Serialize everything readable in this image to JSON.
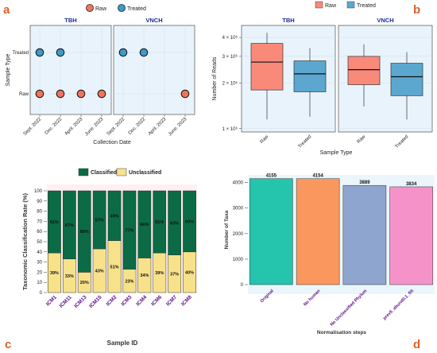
{
  "colors": {
    "raw": "#f2735c",
    "treated": "#3b9ac6",
    "raw_box": "#f98a7a",
    "treated_box": "#5ba7cf",
    "panel_bg": "#e8f3fb",
    "classified": "#0b6b45",
    "unclassified": "#f7e28a",
    "panel_letter": "#d9622b",
    "strip_text": "#1a2a9a",
    "sample_text": "#5c0a8a",
    "bar_colors": [
      "#24c4ad",
      "#f9975e",
      "#8ea5cf",
      "#f593c9"
    ]
  },
  "panel_labels": [
    "a",
    "b",
    "c",
    "d"
  ],
  "chart_data": [
    {
      "id": "a",
      "type": "scatter",
      "legend": [
        "Raw",
        "Treated"
      ],
      "legend_position": "top",
      "facets": [
        "TBH",
        "VNCH"
      ],
      "x_categories": [
        "Sept. 2022",
        "Dec. 2022",
        "April. 2023",
        "June. 2023"
      ],
      "y_categories": [
        "Raw",
        "Treated"
      ],
      "xlabel": "Collection Date",
      "ylabel": "Sample Type",
      "points": [
        {
          "facet": "TBH",
          "x": "Sept. 2022",
          "y": "Raw"
        },
        {
          "facet": "TBH",
          "x": "Dec. 2022",
          "y": "Raw"
        },
        {
          "facet": "TBH",
          "x": "April. 2023",
          "y": "Raw"
        },
        {
          "facet": "TBH",
          "x": "June. 2023",
          "y": "Raw"
        },
        {
          "facet": "TBH",
          "x": "Sept. 2022",
          "y": "Treated"
        },
        {
          "facet": "TBH",
          "x": "Dec. 2022",
          "y": "Treated"
        },
        {
          "facet": "VNCH",
          "x": "Sept. 2022",
          "y": "Treated"
        },
        {
          "facet": "VNCH",
          "x": "Dec. 2022",
          "y": "Treated"
        },
        {
          "facet": "VNCH",
          "x": "June. 2023",
          "y": "Raw"
        }
      ]
    },
    {
      "id": "b",
      "type": "boxplot",
      "legend": [
        "Raw",
        "Treated"
      ],
      "legend_position": "top",
      "facets": [
        "TBH",
        "VNCH"
      ],
      "categories": [
        "Raw",
        "Treated"
      ],
      "xlabel": "Sample Type",
      "ylabel": "Number of Reads",
      "y_scale": "log",
      "yticks": [
        1000000,
        2000000,
        3000000,
        4000000
      ],
      "ytick_labels": [
        "1 × 10⁶",
        "2 × 10⁶",
        "3 × 10⁶",
        "4 × 10⁶"
      ],
      "ylim": [
        950000,
        4800000
      ],
      "boxes": [
        {
          "facet": "TBH",
          "category": "Raw",
          "min": 1150000,
          "q1": 1800000,
          "median": 2750000,
          "q3": 3650000,
          "max": 4300000
        },
        {
          "facet": "TBH",
          "category": "Treated",
          "min": 1200000,
          "q1": 1750000,
          "median": 2300000,
          "q3": 2800000,
          "max": 3400000
        },
        {
          "facet": "VNCH",
          "category": "Raw",
          "min": 1400000,
          "q1": 1950000,
          "median": 2450000,
          "q3": 3000000,
          "max": 3600000
        },
        {
          "facet": "VNCH",
          "category": "Treated",
          "min": 1150000,
          "q1": 1650000,
          "median": 2200000,
          "q3": 2700000,
          "max": 3200000
        }
      ]
    },
    {
      "id": "c",
      "type": "bar",
      "stacked": true,
      "legend": [
        "Classified",
        "Unclassified"
      ],
      "legend_position": "top",
      "categories": [
        "ICM1",
        "ICM11",
        "ICM13",
        "ICM15",
        "ICM2",
        "ICM3",
        "ICM4",
        "ICM6",
        "ICM7",
        "ICM8"
      ],
      "series": [
        {
          "name": "Classified",
          "values": [
            61,
            67,
            80,
            57,
            49,
            77,
            66,
            61,
            63,
            60
          ]
        },
        {
          "name": "Unclassified",
          "values": [
            39,
            33,
            20,
            43,
            51,
            23,
            34,
            39,
            37,
            40
          ]
        }
      ],
      "classified_labels": [
        "61%",
        "67%",
        "80%",
        "57%",
        "49%",
        "77%",
        "66%",
        "61%",
        "63%",
        "60%"
      ],
      "unclassified_labels": [
        "39%",
        "33%",
        "20%",
        "43%",
        "51%",
        "23%",
        "34%",
        "39%",
        "37%",
        "40%"
      ],
      "xlabel": "Sample ID",
      "ylabel": "Taxonomic Classification Rate (%)",
      "ylim": [
        0,
        100
      ],
      "yticks": [
        "0",
        "10",
        "20",
        "30",
        "40",
        "50",
        "60",
        "70",
        "80",
        "90",
        "100"
      ]
    },
    {
      "id": "d",
      "type": "bar",
      "categories": [
        "Original",
        "No human",
        "No Unclassified Phylum",
        "prev5_abund0.1_filt"
      ],
      "values": [
        4155,
        4154,
        3889,
        3834
      ],
      "value_labels": [
        "4155",
        "4154",
        "3889",
        "3834"
      ],
      "xlabel": "Normalisation steps",
      "ylabel": "Number of Taxa",
      "ylim": [
        0,
        4300
      ],
      "yticks": [
        "0",
        "1000",
        "2000",
        "3000",
        "4000"
      ]
    }
  ]
}
